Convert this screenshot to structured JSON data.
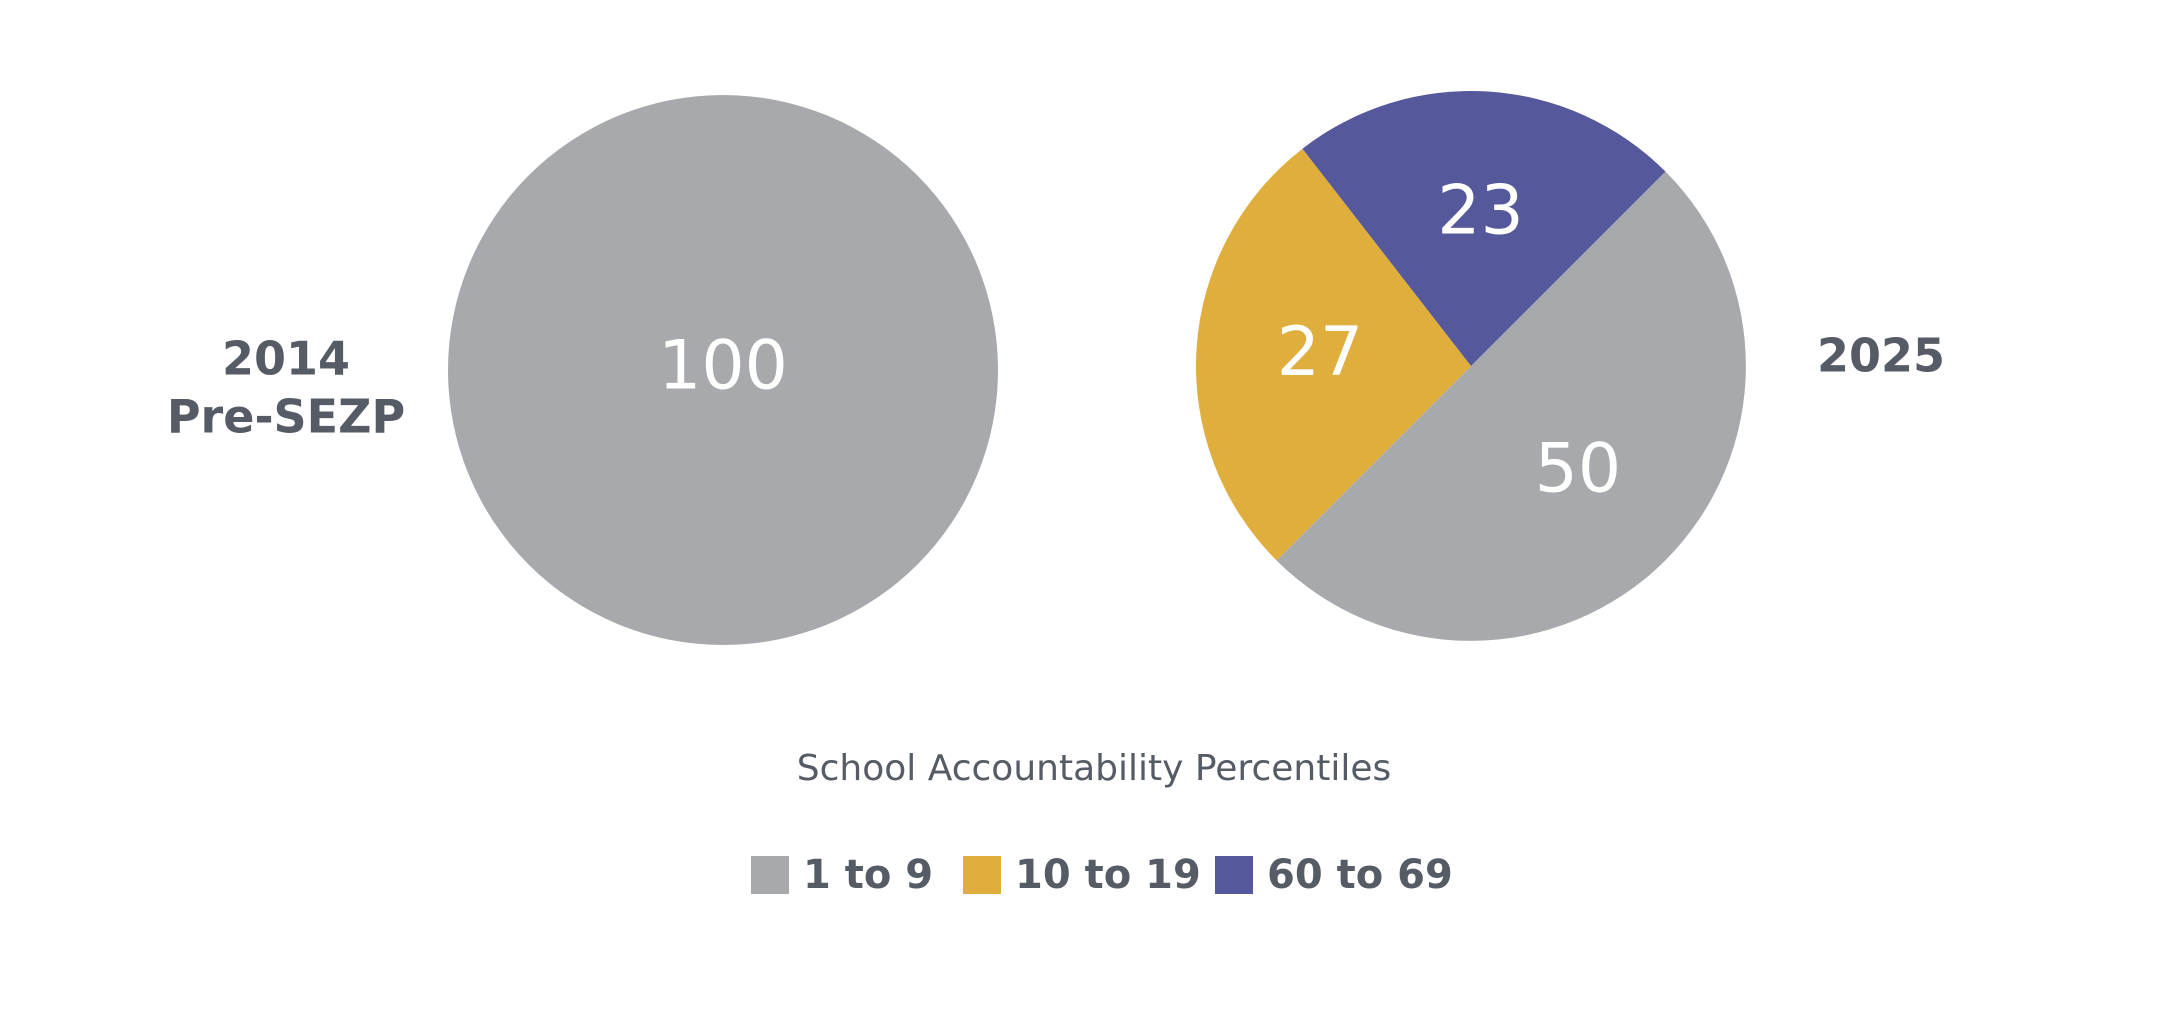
{
  "chart_data": [
    {
      "type": "pie",
      "title_lines": [
        "2014",
        "Pre-SEZP"
      ],
      "categories": [
        "1 to 9"
      ],
      "values": [
        100
      ],
      "colors": [
        "#a8a9ac"
      ]
    },
    {
      "type": "pie",
      "title_lines": [
        "2025"
      ],
      "categories": [
        "1 to 9",
        "10 to 19",
        "60 to 69"
      ],
      "values": [
        50,
        27,
        23
      ],
      "colors": [
        "#a8a9ac",
        "#e0ae3c",
        "#56589c"
      ]
    }
  ],
  "legend_title": "School Accountability Percentiles"
}
